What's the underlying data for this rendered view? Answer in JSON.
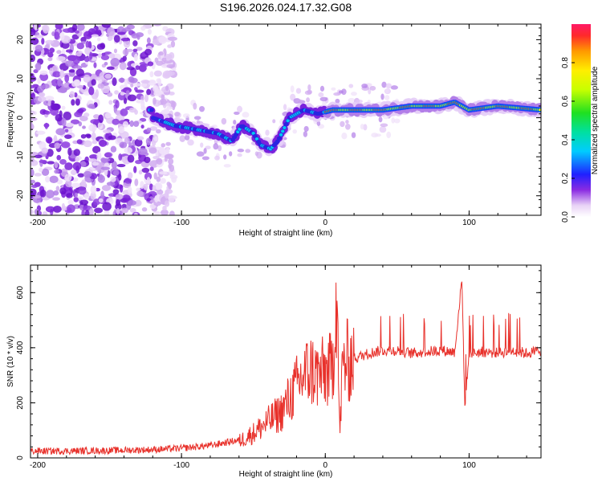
{
  "title": "S196.2026.024.17.32.G08",
  "colors": {
    "snr_line": "#e8312b",
    "axis": "#000000",
    "background": "#ffffff"
  },
  "chart_data": [
    {
      "type": "heatmap",
      "xlabel": "Height of straight line (km)",
      "ylabel": "Frequency (Hz)",
      "xlim": [
        -205,
        150
      ],
      "ylim": [
        -25,
        24
      ],
      "xticks": [
        -200,
        -100,
        0,
        100
      ],
      "yticks": [
        -20,
        -10,
        0,
        10,
        20
      ],
      "colorbar": {
        "label": "Normalized spectral amplitude",
        "range": [
          0,
          1
        ],
        "ticks": [
          0.0,
          0.2,
          0.4,
          0.6,
          0.8
        ]
      },
      "ridge": {
        "description_points_x": [
          -120,
          -105,
          -90,
          -75,
          -65,
          -58,
          -50,
          -45,
          -38,
          -33,
          -25,
          -15,
          -5,
          5,
          20,
          40,
          60,
          80,
          90,
          100,
          120,
          150
        ],
        "description_points_y": [
          0,
          -2,
          -3,
          -4,
          -6,
          -2,
          -4,
          -7,
          -8,
          -6,
          0,
          2,
          1,
          2,
          2,
          2,
          3,
          3,
          4,
          2,
          3,
          2
        ],
        "high_amplitude_from_x": 0
      },
      "noise_region_x": [
        -205,
        -120
      ]
    },
    {
      "type": "line",
      "xlabel": "Height of straight line (km)",
      "ylabel": "SNR (10 * v/v)",
      "xlim": [
        -205,
        150
      ],
      "ylim": [
        0,
        700
      ],
      "xticks": [
        -200,
        -100,
        0,
        100
      ],
      "yticks": [
        0,
        200,
        400,
        600
      ],
      "series": [
        {
          "name": "SNR",
          "x": [
            -205,
            -180,
            -150,
            -120,
            -100,
            -80,
            -60,
            -50,
            -40,
            -30,
            -20,
            -15,
            -10,
            -5,
            0,
            5,
            8,
            10,
            12,
            15,
            20,
            30,
            40,
            50,
            60,
            70,
            80,
            90,
            95,
            97,
            100,
            110,
            120,
            130,
            140,
            150
          ],
          "y": [
            20,
            20,
            22,
            25,
            30,
            40,
            60,
            90,
            130,
            170,
            260,
            300,
            320,
            300,
            310,
            320,
            650,
            80,
            330,
            350,
            360,
            380,
            390,
            390,
            380,
            385,
            390,
            385,
            650,
            190,
            380,
            385,
            380,
            390,
            380,
            390
          ]
        }
      ]
    }
  ]
}
